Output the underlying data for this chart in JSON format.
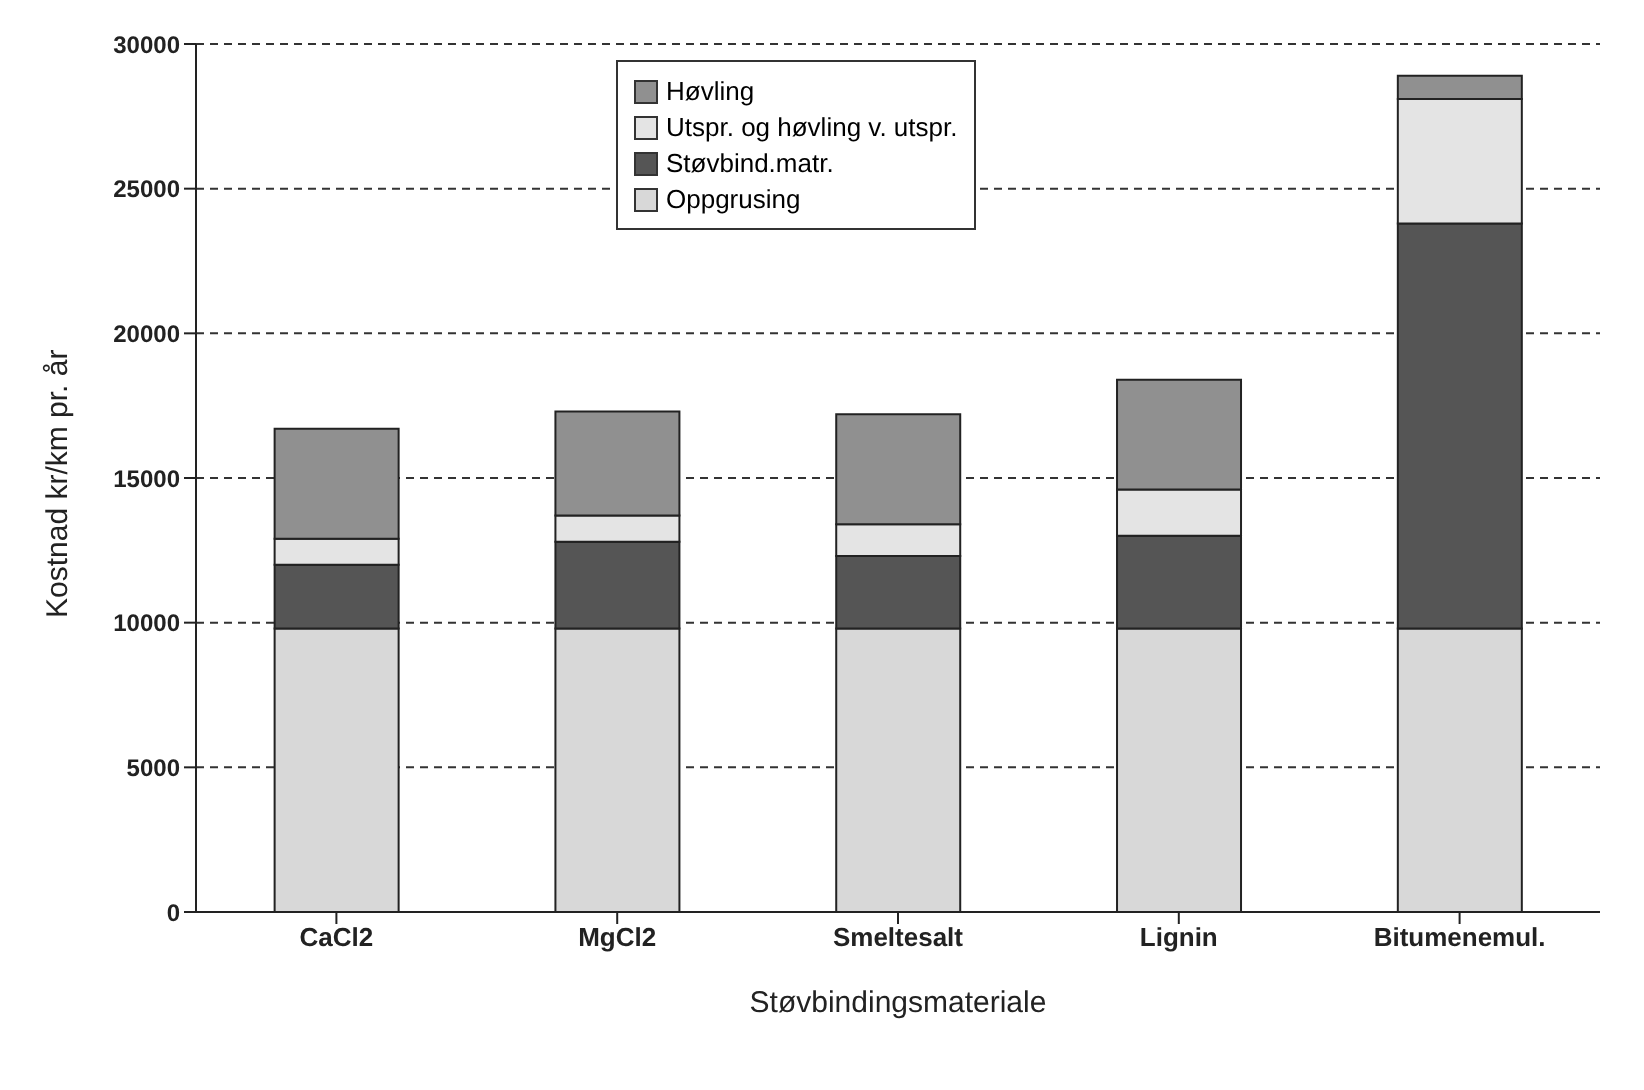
{
  "chart_data": {
    "type": "bar",
    "stacked": true,
    "xlabel": "Støvbindingsmateriale",
    "ylabel": "Kostnad kr/km pr. år",
    "categories": [
      "CaCl2",
      "MgCl2",
      "Smeltesalt",
      "Lignin",
      "Bitumenemul."
    ],
    "series": [
      {
        "name": "Oppgrusing",
        "color": "#d8d8d8",
        "values": [
          9800,
          9800,
          9800,
          9800,
          9800
        ]
      },
      {
        "name": "Støvbind.matr.",
        "color": "#555555",
        "values": [
          2200,
          3000,
          2500,
          3200,
          14000
        ]
      },
      {
        "name": "Utspr. og høvling v. utspr.",
        "color": "#e4e4e4",
        "values": [
          900,
          900,
          1100,
          1600,
          4300
        ]
      },
      {
        "name": "Høvling",
        "color": "#909090",
        "values": [
          3800,
          3600,
          3800,
          3800,
          800
        ]
      }
    ],
    "ylim": [
      0,
      30000
    ],
    "yticks": [
      0,
      5000,
      10000,
      15000,
      20000,
      25000,
      30000
    ],
    "grid": "y",
    "legend": "top"
  }
}
